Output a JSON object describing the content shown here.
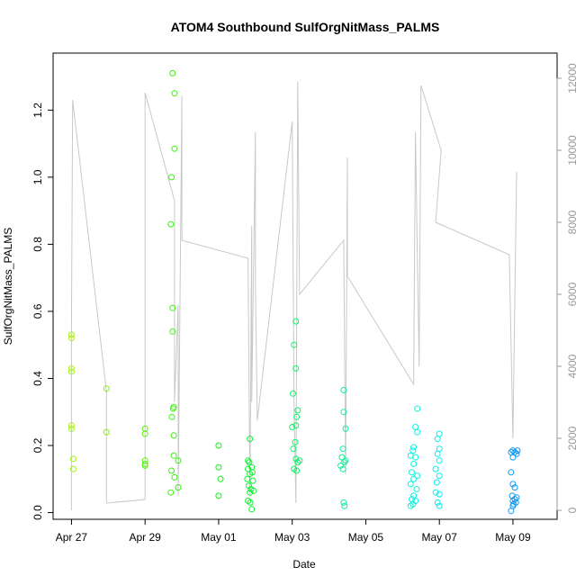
{
  "chart_data": {
    "type": "scatter",
    "title": "ATOM4 Southbound SulfOrgNitMass_PALMS",
    "xlabel": "Date",
    "ylabel": "SulfOrgNitMass_PALMS",
    "x_ticks": [
      "Apr 27",
      "Apr 29",
      "May 01",
      "May 03",
      "May 05",
      "May 07",
      "May 09"
    ],
    "x_tick_days": [
      0,
      2,
      4,
      6,
      8,
      10,
      12
    ],
    "xlim_days": [
      -0.5,
      13.2
    ],
    "y_ticks": [
      "0.0",
      "0.2",
      "0.4",
      "0.6",
      "0.8",
      "1.0",
      "1.2"
    ],
    "y_tick_values": [
      0,
      0.2,
      0.4,
      0.6,
      0.8,
      1.0,
      1.2
    ],
    "ylim": [
      -0.02,
      1.37
    ],
    "y2_ticks": [
      "0",
      "2000",
      "4000",
      "6000",
      "8000",
      "10000",
      "12000"
    ],
    "y2_tick_values": [
      0,
      2000,
      4000,
      6000,
      8000,
      10000,
      12000
    ],
    "y2lim": [
      -250,
      12700
    ],
    "grid": false,
    "legend": "none",
    "points_style": "open circles colored by date (yellow-green to blue)",
    "altitude_line_color": "#c8c8c8",
    "points": [
      {
        "d": 0.0,
        "v": 0.53
      },
      {
        "d": 0.0,
        "v": 0.52
      },
      {
        "d": 0.0,
        "v": 0.43
      },
      {
        "d": 0.0,
        "v": 0.42
      },
      {
        "d": 0.0,
        "v": 0.26
      },
      {
        "d": 0.0,
        "v": 0.25
      },
      {
        "d": 0.05,
        "v": 0.16
      },
      {
        "d": 0.05,
        "v": 0.13
      },
      {
        "d": 0.95,
        "v": 0.37
      },
      {
        "d": 0.95,
        "v": 0.24
      },
      {
        "d": 2.0,
        "v": 0.25
      },
      {
        "d": 2.0,
        "v": 0.235
      },
      {
        "d": 2.0,
        "v": 0.155
      },
      {
        "d": 2.0,
        "v": 0.145
      },
      {
        "d": 2.0,
        "v": 0.14
      },
      {
        "d": 2.75,
        "v": 1.31
      },
      {
        "d": 2.8,
        "v": 1.25
      },
      {
        "d": 2.8,
        "v": 1.085
      },
      {
        "d": 2.72,
        "v": 1.0
      },
      {
        "d": 2.7,
        "v": 0.86
      },
      {
        "d": 2.75,
        "v": 0.61
      },
      {
        "d": 2.75,
        "v": 0.54
      },
      {
        "d": 2.78,
        "v": 0.315
      },
      {
        "d": 2.76,
        "v": 0.31
      },
      {
        "d": 2.73,
        "v": 0.285
      },
      {
        "d": 2.78,
        "v": 0.23
      },
      {
        "d": 2.78,
        "v": 0.17
      },
      {
        "d": 2.9,
        "v": 0.155
      },
      {
        "d": 2.72,
        "v": 0.125
      },
      {
        "d": 2.8,
        "v": 0.105
      },
      {
        "d": 2.9,
        "v": 0.075
      },
      {
        "d": 2.7,
        "v": 0.06
      },
      {
        "d": 4.0,
        "v": 0.2
      },
      {
        "d": 4.0,
        "v": 0.135
      },
      {
        "d": 4.05,
        "v": 0.1
      },
      {
        "d": 4.0,
        "v": 0.05
      },
      {
        "d": 4.85,
        "v": 0.22
      },
      {
        "d": 4.8,
        "v": 0.155
      },
      {
        "d": 4.83,
        "v": 0.15
      },
      {
        "d": 4.9,
        "v": 0.135
      },
      {
        "d": 4.8,
        "v": 0.13
      },
      {
        "d": 4.92,
        "v": 0.12
      },
      {
        "d": 4.85,
        "v": 0.115
      },
      {
        "d": 4.78,
        "v": 0.1
      },
      {
        "d": 4.93,
        "v": 0.095
      },
      {
        "d": 4.82,
        "v": 0.08
      },
      {
        "d": 4.88,
        "v": 0.07
      },
      {
        "d": 4.95,
        "v": 0.065
      },
      {
        "d": 4.85,
        "v": 0.06
      },
      {
        "d": 4.8,
        "v": 0.035
      },
      {
        "d": 4.86,
        "v": 0.03
      },
      {
        "d": 4.9,
        "v": 0.01
      },
      {
        "d": 6.1,
        "v": 0.57
      },
      {
        "d": 6.05,
        "v": 0.5
      },
      {
        "d": 6.1,
        "v": 0.43
      },
      {
        "d": 6.02,
        "v": 0.355
      },
      {
        "d": 6.15,
        "v": 0.305
      },
      {
        "d": 6.12,
        "v": 0.285
      },
      {
        "d": 6.1,
        "v": 0.26
      },
      {
        "d": 6.0,
        "v": 0.255
      },
      {
        "d": 6.08,
        "v": 0.21
      },
      {
        "d": 6.03,
        "v": 0.19
      },
      {
        "d": 6.1,
        "v": 0.16
      },
      {
        "d": 6.2,
        "v": 0.155
      },
      {
        "d": 6.15,
        "v": 0.15
      },
      {
        "d": 6.05,
        "v": 0.13
      },
      {
        "d": 6.12,
        "v": 0.125
      },
      {
        "d": 7.4,
        "v": 0.365
      },
      {
        "d": 7.4,
        "v": 0.3
      },
      {
        "d": 7.45,
        "v": 0.25
      },
      {
        "d": 7.38,
        "v": 0.19
      },
      {
        "d": 7.35,
        "v": 0.165
      },
      {
        "d": 7.45,
        "v": 0.155
      },
      {
        "d": 7.42,
        "v": 0.15
      },
      {
        "d": 7.32,
        "v": 0.14
      },
      {
        "d": 7.38,
        "v": 0.13
      },
      {
        "d": 7.4,
        "v": 0.03
      },
      {
        "d": 7.42,
        "v": 0.02
      },
      {
        "d": 9.4,
        "v": 0.31
      },
      {
        "d": 9.35,
        "v": 0.255
      },
      {
        "d": 9.4,
        "v": 0.24
      },
      {
        "d": 9.3,
        "v": 0.195
      },
      {
        "d": 9.28,
        "v": 0.185
      },
      {
        "d": 9.22,
        "v": 0.17
      },
      {
        "d": 9.35,
        "v": 0.165
      },
      {
        "d": 9.3,
        "v": 0.145
      },
      {
        "d": 9.25,
        "v": 0.12
      },
      {
        "d": 9.4,
        "v": 0.11
      },
      {
        "d": 9.3,
        "v": 0.1
      },
      {
        "d": 9.22,
        "v": 0.085
      },
      {
        "d": 9.38,
        "v": 0.07
      },
      {
        "d": 9.3,
        "v": 0.05
      },
      {
        "d": 9.25,
        "v": 0.04
      },
      {
        "d": 9.35,
        "v": 0.035
      },
      {
        "d": 9.28,
        "v": 0.025
      },
      {
        "d": 9.22,
        "v": 0.02
      },
      {
        "d": 10.0,
        "v": 0.235
      },
      {
        "d": 9.95,
        "v": 0.22
      },
      {
        "d": 10.0,
        "v": 0.19
      },
      {
        "d": 9.95,
        "v": 0.175
      },
      {
        "d": 10.0,
        "v": 0.155
      },
      {
        "d": 9.9,
        "v": 0.13
      },
      {
        "d": 10.0,
        "v": 0.11
      },
      {
        "d": 9.93,
        "v": 0.09
      },
      {
        "d": 9.9,
        "v": 0.06
      },
      {
        "d": 10.0,
        "v": 0.055
      },
      {
        "d": 9.95,
        "v": 0.03
      },
      {
        "d": 10.0,
        "v": 0.02
      },
      {
        "d": 11.95,
        "v": 0.18
      },
      {
        "d": 12.0,
        "v": 0.185
      },
      {
        "d": 12.05,
        "v": 0.18
      },
      {
        "d": 12.1,
        "v": 0.175
      },
      {
        "d": 12.12,
        "v": 0.185
      },
      {
        "d": 12.0,
        "v": 0.165
      },
      {
        "d": 11.95,
        "v": 0.12
      },
      {
        "d": 12.0,
        "v": 0.085
      },
      {
        "d": 12.05,
        "v": 0.075
      },
      {
        "d": 11.98,
        "v": 0.05
      },
      {
        "d": 12.1,
        "v": 0.045
      },
      {
        "d": 12.05,
        "v": 0.04
      },
      {
        "d": 12.0,
        "v": 0.035
      },
      {
        "d": 12.08,
        "v": 0.03
      },
      {
        "d": 12.02,
        "v": 0.025
      },
      {
        "d": 12.0,
        "v": 0.02
      },
      {
        "d": 11.95,
        "v": 0.005
      }
    ],
    "altitude_series": [
      [
        0.0,
        0
      ],
      [
        0.0,
        5000
      ],
      [
        0.03,
        11400
      ],
      [
        0.95,
        3300
      ],
      [
        0.95,
        200
      ],
      [
        2.0,
        300
      ],
      [
        2.0,
        11600
      ],
      [
        2.8,
        8600
      ],
      [
        2.8,
        3000
      ],
      [
        2.9,
        5700
      ],
      [
        2.9,
        400
      ],
      [
        3.0,
        11500
      ],
      [
        3.0,
        7500
      ],
      [
        4.8,
        7000
      ],
      [
        4.85,
        400
      ],
      [
        4.9,
        7900
      ],
      [
        4.9,
        3000
      ],
      [
        5.0,
        10500
      ],
      [
        5.0,
        6300
      ],
      [
        5.05,
        2500
      ],
      [
        6.0,
        10800
      ],
      [
        6.05,
        3000
      ],
      [
        6.1,
        200
      ],
      [
        6.15,
        11900
      ],
      [
        6.2,
        6000
      ],
      [
        7.4,
        7500
      ],
      [
        7.45,
        1000
      ],
      [
        7.5,
        9800
      ],
      [
        7.5,
        6500
      ],
      [
        9.3,
        3500
      ],
      [
        9.35,
        10500
      ],
      [
        9.45,
        4000
      ],
      [
        9.5,
        11800
      ],
      [
        10.05,
        10000
      ],
      [
        9.9,
        8000
      ],
      [
        11.9,
        7100
      ],
      [
        12.0,
        2000
      ],
      [
        12.1,
        9400
      ]
    ]
  }
}
